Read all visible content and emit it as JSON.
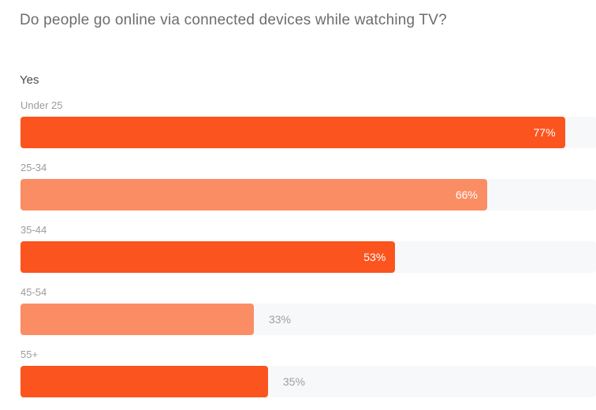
{
  "header": {
    "title": "Do people go online via connected devices while watching TV?"
  },
  "chart_data": {
    "type": "bar",
    "orientation": "horizontal",
    "title": "Do people go online via connected devices while watching TV?",
    "series_label": "Yes",
    "categories": [
      "Under 25",
      "25-34",
      "35-44",
      "45-54",
      "55+"
    ],
    "values": [
      77,
      66,
      53,
      33,
      35
    ],
    "value_labels": [
      "77%",
      "66%",
      "53%",
      "33%",
      "35%"
    ],
    "unit": "%",
    "xlim": [
      0,
      100
    ],
    "visible_xmax": 81.4,
    "grid": false,
    "legend": false,
    "label_placement": [
      "inside",
      "inside",
      "inside",
      "outside",
      "outside"
    ],
    "bar_color_pattern": [
      "bar_primary",
      "bar_secondary",
      "bar_primary",
      "bar_secondary",
      "bar_primary"
    ],
    "colors": {
      "bar_primary": "#fb541f",
      "bar_secondary": "#fb8d64",
      "track": "#f7f8fa",
      "value_label_inside": "#ffffff",
      "value_label_outside": "#9e9e9e",
      "category_label": "#9c9c9c",
      "title": "#6d6d6d",
      "series_label": "#4b4b4b"
    }
  }
}
